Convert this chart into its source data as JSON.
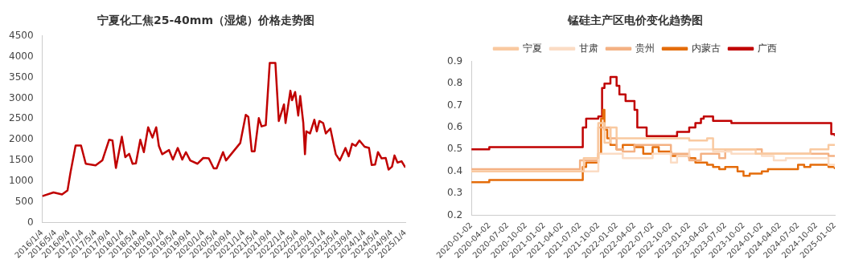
{
  "chart_data": [
    {
      "type": "line",
      "title": "宁夏化工焦25-40mm（湿熄）价格走势图",
      "x": [
        "2016-01-04",
        "2016-04-15",
        "2016-07-01",
        "2016-08-20",
        "2016-09-15",
        "2016-11-01",
        "2016-12-20",
        "2017-02-01",
        "2017-05-01",
        "2017-07-01",
        "2017-09-01",
        "2017-10-01",
        "2017-11-01",
        "2017-12-25",
        "2018-01-25",
        "2018-03-01",
        "2018-04-01",
        "2018-05-01",
        "2018-06-10",
        "2018-07-12",
        "2018-08-20",
        "2018-09-28",
        "2018-11-01",
        "2018-11-25",
        "2018-12-25",
        "2019-02-25",
        "2019-04-01",
        "2019-05-15",
        "2019-06-25",
        "2019-07-28",
        "2019-09-05",
        "2019-11-10",
        "2020-01-01",
        "2020-02-20",
        "2020-04-05",
        "2020-05-01",
        "2020-06-28",
        "2020-07-25",
        "2020-10-10",
        "2020-12-01",
        "2021-01-20",
        "2021-02-12",
        "2021-03-15",
        "2021-04-10",
        "2021-05-18",
        "2021-06-12",
        "2021-07-20",
        "2021-08-25",
        "2021-10-15",
        "2021-11-15",
        "2022-01-01",
        "2022-01-15",
        "2022-02-28",
        "2022-03-15",
        "2022-04-12",
        "2022-05-10",
        "2022-05-28",
        "2022-06-25",
        "2022-07-10",
        "2022-07-22",
        "2022-08-25",
        "2022-10-03",
        "2022-10-25",
        "2022-11-18",
        "2022-12-22",
        "2023-01-15",
        "2023-02-25",
        "2023-04-15",
        "2023-05-22",
        "2023-07-12",
        "2023-08-10",
        "2023-09-10",
        "2023-10-12",
        "2023-11-15",
        "2024-01-01",
        "2024-02-10",
        "2024-03-05",
        "2024-04-05",
        "2024-05-01",
        "2024-06-03",
        "2024-07-10",
        "2024-08-05",
        "2024-09-05",
        "2024-09-28",
        "2024-10-25",
        "2024-12-01",
        "2025-01-04"
      ],
      "series": [
        {
          "color": "#c00000",
          "values": [
            640,
            730,
            680,
            780,
            1200,
            1860,
            1860,
            1420,
            1380,
            1500,
            2000,
            1980,
            1320,
            2070,
            1580,
            1660,
            1420,
            1430,
            2000,
            1700,
            2300,
            2050,
            2300,
            1850,
            1650,
            1750,
            1520,
            1800,
            1520,
            1700,
            1500,
            1420,
            1560,
            1550,
            1310,
            1310,
            1700,
            1500,
            1750,
            1920,
            2600,
            2550,
            1720,
            1720,
            2520,
            2320,
            2350,
            3850,
            3850,
            2450,
            2850,
            2400,
            3180,
            2950,
            3150,
            2580,
            3050,
            2400,
            1650,
            2200,
            2150,
            2480,
            2200,
            2450,
            2400,
            2150,
            2270,
            1650,
            1500,
            1800,
            1600,
            1900,
            1850,
            1980,
            1830,
            1800,
            1390,
            1400,
            1700,
            1550,
            1560,
            1280,
            1350,
            1620,
            1450,
            1480,
            1330
          ]
        }
      ],
      "xlim": [
        "2016-01-04",
        "2025-01-04"
      ],
      "xticks": [
        {
          "value": "2016-01-04",
          "label": "2016/1/4"
        },
        {
          "value": "2016-05-04",
          "label": "2016/5/4"
        },
        {
          "value": "2016-09-04",
          "label": "2016/9/4"
        },
        {
          "value": "2017-01-04",
          "label": "2017/1/4"
        },
        {
          "value": "2017-05-04",
          "label": "2017/5/4"
        },
        {
          "value": "2017-09-04",
          "label": "2017/9/4"
        },
        {
          "value": "2018-01-04",
          "label": "2018/1/4"
        },
        {
          "value": "2018-05-04",
          "label": "2018/5/4"
        },
        {
          "value": "2018-09-04",
          "label": "2018/9/4"
        },
        {
          "value": "2019-01-04",
          "label": "2019/1/4"
        },
        {
          "value": "2019-05-04",
          "label": "2019/5/4"
        },
        {
          "value": "2019-09-04",
          "label": "2019/9/4"
        },
        {
          "value": "2020-01-04",
          "label": "2020/1/4"
        },
        {
          "value": "2020-05-04",
          "label": "2020/5/4"
        },
        {
          "value": "2020-09-04",
          "label": "2020/9/4"
        },
        {
          "value": "2021-01-04",
          "label": "2021/1/4"
        },
        {
          "value": "2021-05-04",
          "label": "2021/5/4"
        },
        {
          "value": "2021-09-04",
          "label": "2021/9/4"
        },
        {
          "value": "2022-01-04",
          "label": "2022/1/4"
        },
        {
          "value": "2022-05-04",
          "label": "2022/5/4"
        },
        {
          "value": "2022-09-04",
          "label": "2022/9/4"
        },
        {
          "value": "2023-01-04",
          "label": "2023/1/4"
        },
        {
          "value": "2023-05-04",
          "label": "2023/5/4"
        },
        {
          "value": "2023-09-04",
          "label": "2023/9/4"
        },
        {
          "value": "2024-01-04",
          "label": "2024/1/4"
        },
        {
          "value": "2024-05-04",
          "label": "2024/5/4"
        },
        {
          "value": "2024-09-04",
          "label": "2024/9/4"
        },
        {
          "value": "2025-01-04",
          "label": "2025/1/4"
        }
      ],
      "ylim": [
        0,
        4500
      ],
      "yticks": [
        0,
        500,
        1000,
        1500,
        2000,
        2500,
        3000,
        3500,
        4000,
        4500
      ],
      "grid": false,
      "legend": false
    },
    {
      "type": "step",
      "title": "锰硅主产区电价变化趋势图",
      "legend": "top",
      "grid": false,
      "series": [
        {
          "name": "宁夏",
          "color": "#f9c9a0",
          "x": [
            "2020-01-02",
            "2021-07-20",
            "2021-10-01",
            "2021-11-01",
            "2021-12-01",
            "2022-01-01",
            "2023-01-01",
            "2023-04-01",
            "2023-05-01",
            "2023-12-01",
            "2024-09-01",
            "2024-12-01",
            "2025-01-02"
          ],
          "values": [
            0.4,
            0.46,
            0.62,
            0.53,
            0.6,
            0.55,
            0.54,
            0.55,
            0.5,
            0.48,
            0.5,
            0.52,
            0.52
          ]
        },
        {
          "name": "甘肃",
          "color": "#fbdcc4",
          "x": [
            "2020-01-02",
            "2021-10-01",
            "2022-02-01",
            "2022-07-01",
            "2022-10-01",
            "2022-11-01",
            "2023-01-01",
            "2023-05-01",
            "2023-08-01",
            "2024-01-01",
            "2024-03-01",
            "2024-05-01",
            "2024-12-01",
            "2025-01-02"
          ],
          "values": [
            0.4,
            0.48,
            0.46,
            0.48,
            0.44,
            0.47,
            0.5,
            0.49,
            0.48,
            0.47,
            0.45,
            0.46,
            0.43,
            0.42
          ]
        },
        {
          "name": "贵州",
          "color": "#f4b183",
          "x": [
            "2020-01-02",
            "2021-07-01",
            "2021-10-01",
            "2021-12-01",
            "2022-01-01",
            "2022-02-01",
            "2022-04-01",
            "2022-10-01",
            "2023-01-01",
            "2023-03-01",
            "2023-06-01",
            "2023-07-01",
            "2024-01-01",
            "2024-12-01",
            "2025-01-02"
          ],
          "values": [
            0.41,
            0.45,
            0.6,
            0.55,
            0.5,
            0.49,
            0.52,
            0.48,
            0.45,
            0.48,
            0.46,
            0.5,
            0.48,
            0.47,
            0.47
          ]
        },
        {
          "name": "内蒙古",
          "color": "#e46c0a",
          "x": [
            "2020-01-02",
            "2020-04-01",
            "2021-07-15",
            "2021-08-01",
            "2021-10-01",
            "2021-10-15",
            "2021-10-25",
            "2021-11-01",
            "2021-11-15",
            "2021-12-01",
            "2022-01-01",
            "2022-02-01",
            "2022-04-01",
            "2022-05-15",
            "2022-07-01",
            "2022-08-01",
            "2022-10-01",
            "2023-01-01",
            "2023-02-01",
            "2023-04-01",
            "2023-05-01",
            "2023-06-01",
            "2023-07-01",
            "2023-09-01",
            "2023-10-01",
            "2023-11-01",
            "2024-01-01",
            "2024-02-01",
            "2024-07-01",
            "2024-08-01",
            "2024-09-01",
            "2024-12-01",
            "2025-01-02"
          ],
          "values": [
            0.35,
            0.36,
            0.42,
            0.44,
            0.48,
            0.64,
            0.68,
            0.59,
            0.55,
            0.52,
            0.5,
            0.52,
            0.51,
            0.48,
            0.51,
            0.49,
            0.47,
            0.46,
            0.44,
            0.43,
            0.42,
            0.41,
            0.42,
            0.4,
            0.38,
            0.39,
            0.4,
            0.41,
            0.43,
            0.42,
            0.43,
            0.42,
            0.41
          ]
        },
        {
          "name": "广西",
          "color": "#c00000",
          "x": [
            "2020-01-02",
            "2020-04-01",
            "2021-07-15",
            "2021-08-01",
            "2021-10-01",
            "2021-10-20",
            "2021-11-01",
            "2021-12-01",
            "2022-01-01",
            "2022-01-15",
            "2022-02-15",
            "2022-04-01",
            "2022-04-15",
            "2022-06-01",
            "2022-11-01",
            "2023-01-01",
            "2023-02-01",
            "2023-03-01",
            "2023-03-15",
            "2023-05-01",
            "2023-08-01",
            "2024-12-15",
            "2025-01-02"
          ],
          "values": [
            0.5,
            0.51,
            0.6,
            0.64,
            0.65,
            0.78,
            0.8,
            0.83,
            0.79,
            0.75,
            0.72,
            0.68,
            0.6,
            0.56,
            0.58,
            0.6,
            0.62,
            0.64,
            0.65,
            0.63,
            0.62,
            0.57,
            0.56
          ]
        }
      ],
      "xlim": [
        "2020-01-02",
        "2025-01-02"
      ],
      "xticks": [
        "2020-01-02",
        "2020-04-02",
        "2020-07-02",
        "2020-10-02",
        "2021-01-02",
        "2021-04-02",
        "2021-07-02",
        "2021-10-02",
        "2022-01-02",
        "2022-04-02",
        "2022-07-02",
        "2022-10-02",
        "2023-01-02",
        "2023-04-02",
        "2023-07-02",
        "2023-10-02",
        "2024-01-02",
        "2024-04-02",
        "2024-07-02",
        "2024-10-02",
        "2025-01-02"
      ],
      "ylim": [
        0.2,
        0.9
      ],
      "yticks": [
        0.2,
        0.3,
        0.4,
        0.5,
        0.6,
        0.7,
        0.8,
        0.9
      ]
    }
  ]
}
